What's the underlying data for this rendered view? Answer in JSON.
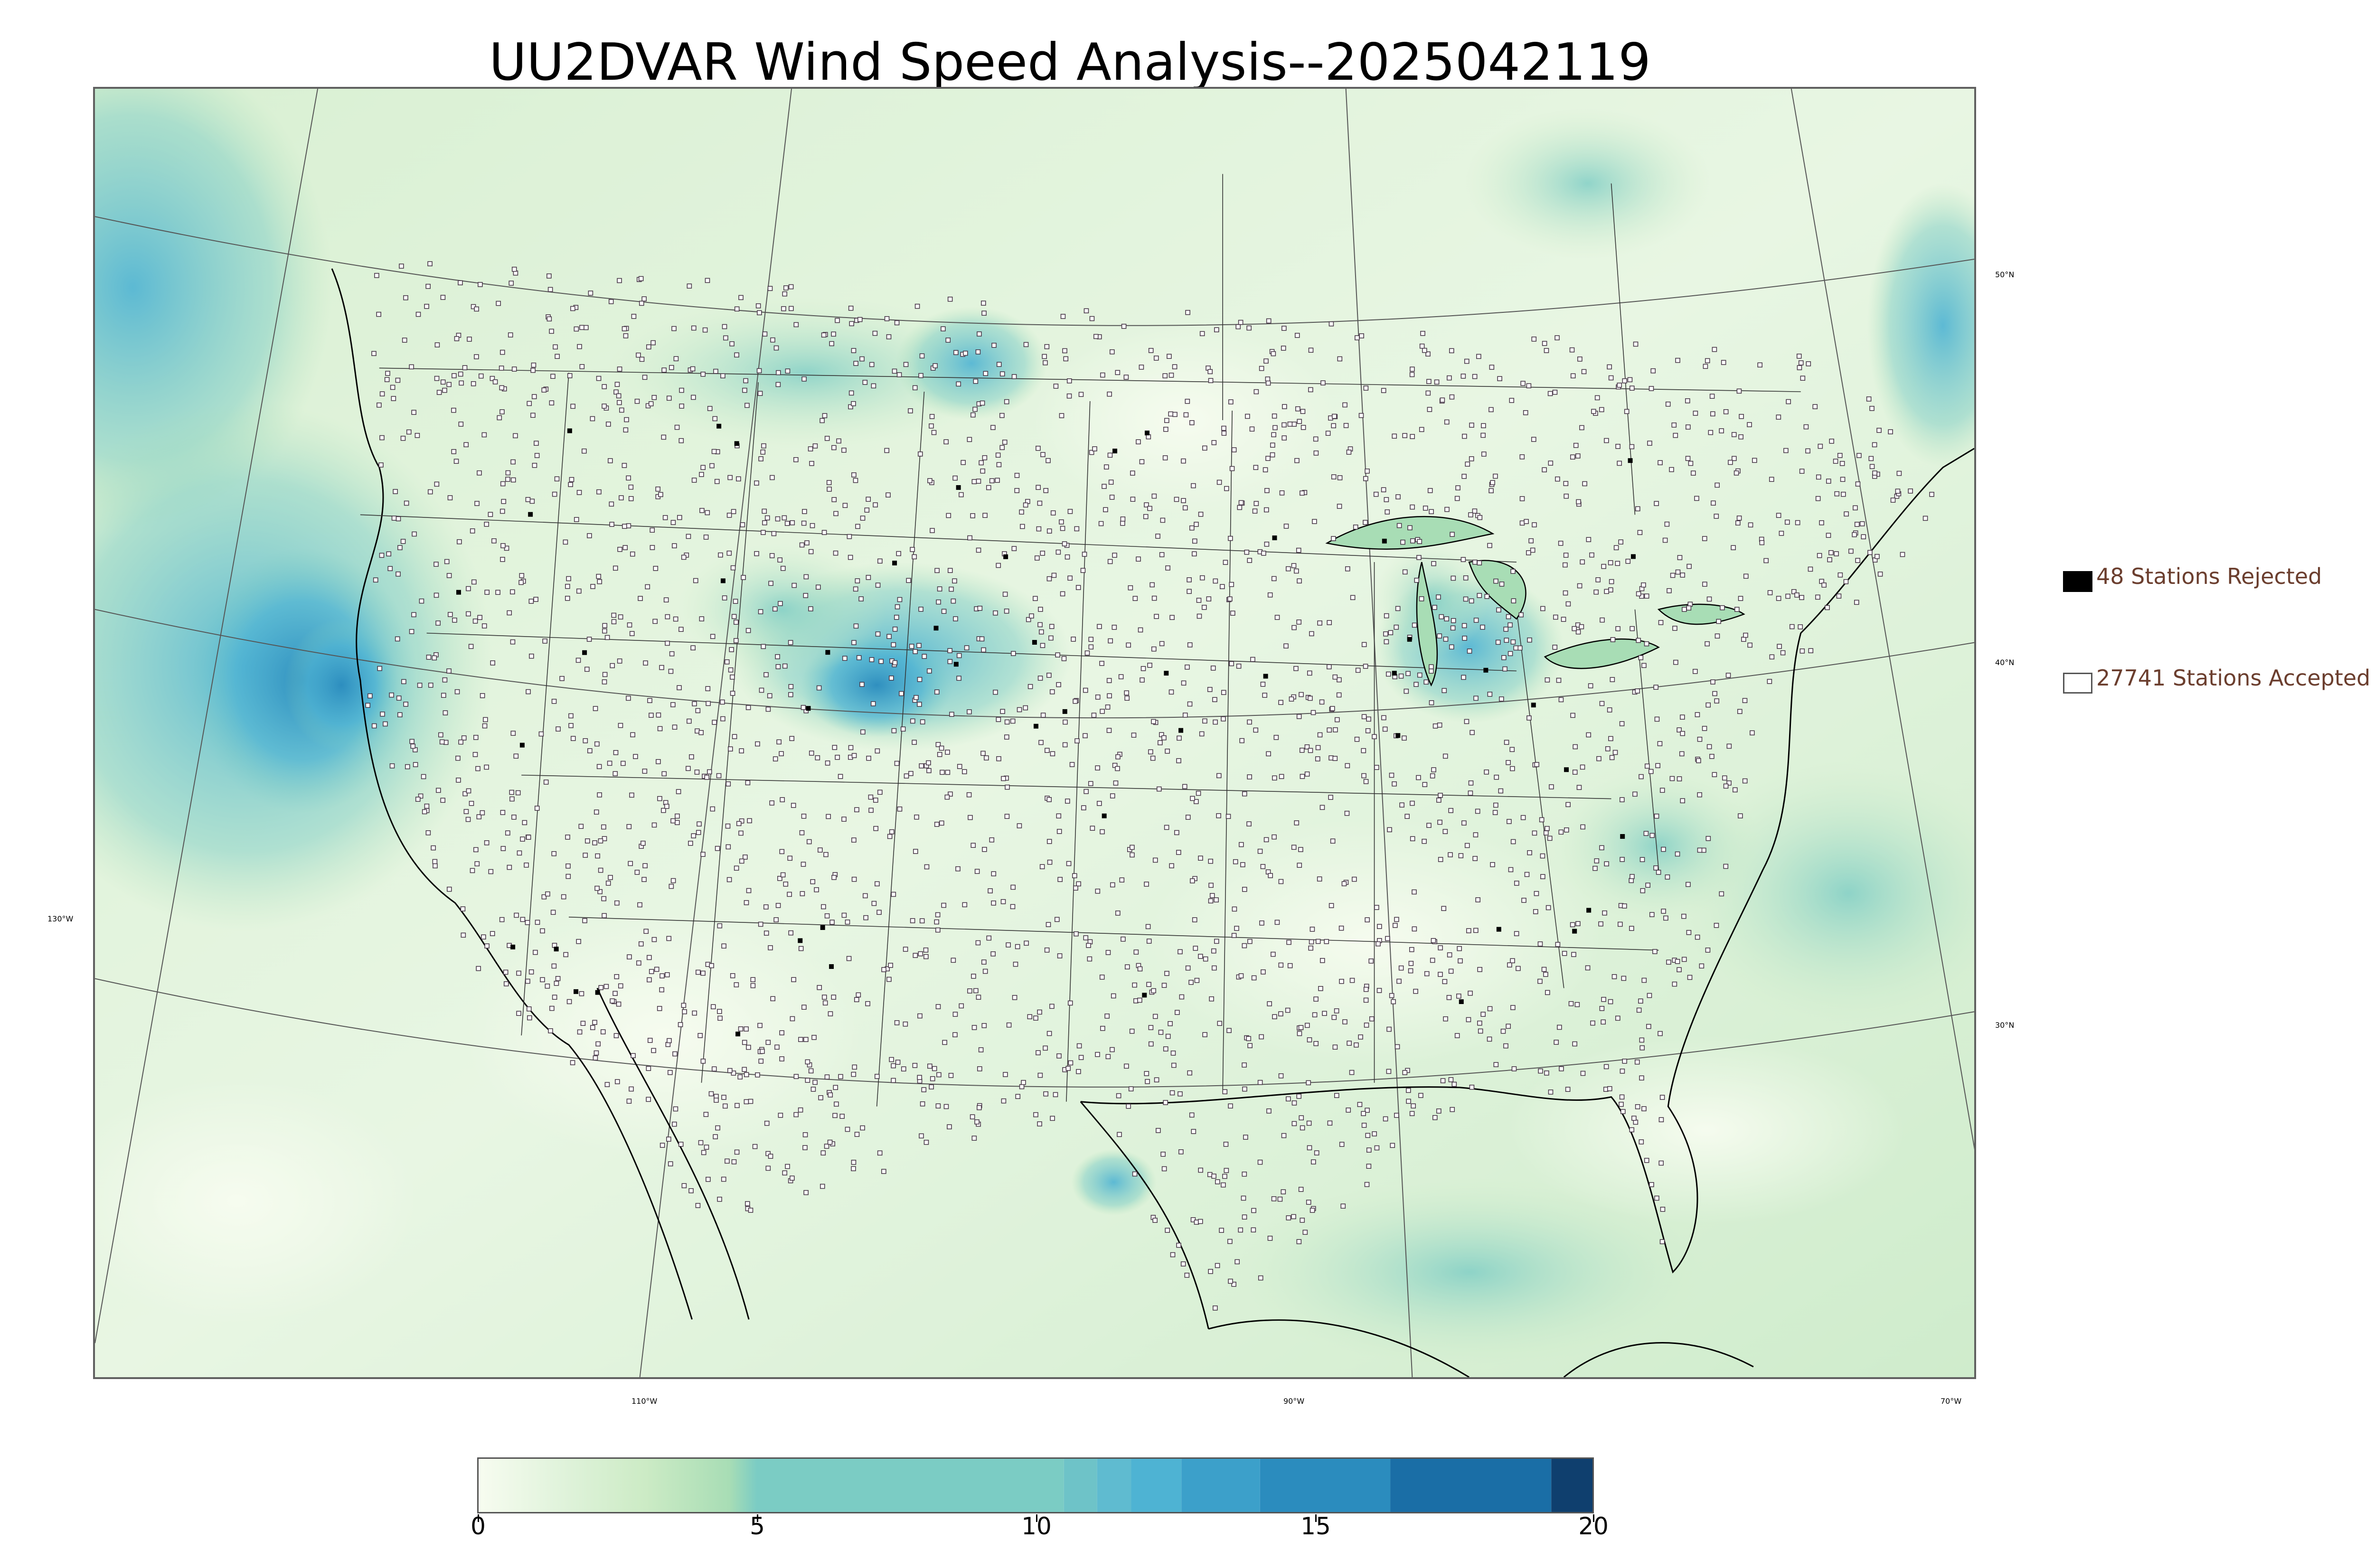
{
  "title": "UU2DVAR Wind Speed Analysis--2025042119",
  "graticule_labels": {
    "lat": [
      "50°N",
      "40°N",
      "30°N"
    ],
    "lon": [
      "130°W",
      "110°W",
      "90°W",
      "70°W"
    ]
  },
  "legend": {
    "rejected": {
      "label": "48 Stations Rejected",
      "count": 48,
      "marker_color": "#000000"
    },
    "accepted": {
      "label": "27741 Stations Accepted",
      "count": 27741,
      "marker_color": "#ffffff"
    }
  },
  "colorbar": {
    "ticks": [
      "0",
      "5",
      "10",
      "15",
      "20"
    ],
    "range": [
      0,
      20
    ],
    "colormap": "GnBu",
    "colors": {
      "low": "#f7fcf0",
      "mid": "#a8ddb5",
      "high": "#4eb3d3",
      "max": "#084081"
    }
  }
}
